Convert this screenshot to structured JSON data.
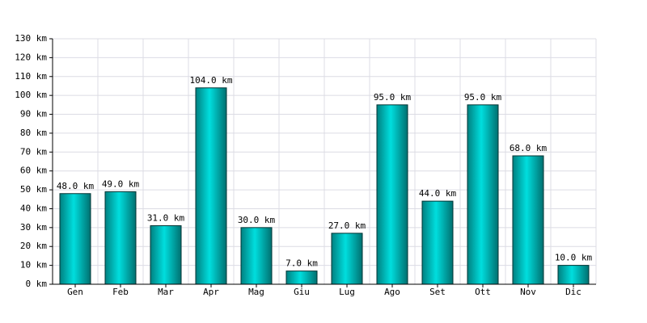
{
  "chart_data": {
    "type": "bar",
    "categories": [
      "Gen",
      "Feb",
      "Mar",
      "Apr",
      "Mag",
      "Giu",
      "Lug",
      "Ago",
      "Set",
      "Ott",
      "Nov",
      "Dic"
    ],
    "values": [
      48,
      49,
      31,
      104,
      30,
      7,
      27,
      95,
      44,
      95,
      68,
      10
    ],
    "value_labels": [
      "48.0 km",
      "49.0 km",
      "31.0 km",
      "104.0 km",
      "30.0 km",
      "7.0 km",
      "27.0 km",
      "95.0 km",
      "44.0 km",
      "95.0 km",
      "68.0 km",
      "10.0 km"
    ],
    "color": "#00dede",
    "ylim": [
      0,
      130
    ],
    "yticks": [
      {
        "value": 0,
        "label": "0 km"
      },
      {
        "value": 10,
        "label": "10 km"
      },
      {
        "value": 20,
        "label": "20 km"
      },
      {
        "value": 30,
        "label": "30 km"
      },
      {
        "value": 40,
        "label": "40 km"
      },
      {
        "value": 50,
        "label": "50 km"
      },
      {
        "value": 60,
        "label": "60 km"
      },
      {
        "value": 70,
        "label": "70 km"
      },
      {
        "value": 80,
        "label": "80 km"
      },
      {
        "value": 90,
        "label": "90 km"
      },
      {
        "value": 100,
        "label": "100 km"
      },
      {
        "value": 110,
        "label": "110 km"
      },
      {
        "value": 120,
        "label": "120 km"
      },
      {
        "value": 130,
        "label": "130 km"
      }
    ],
    "grid": true
  }
}
